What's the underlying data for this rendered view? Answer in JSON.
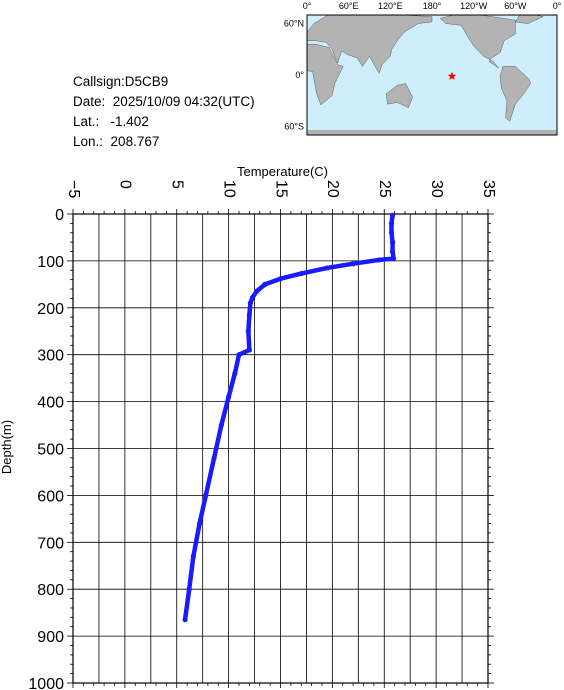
{
  "info": {
    "callsign_label": "Callsign:",
    "callsign": "D5CB9",
    "date_label": "Date:",
    "date": "2025/10/09 04:32(UTC)",
    "lat_label": "Lat.:",
    "lat": "-1.402",
    "lon_label": "Lon.:",
    "lon": "208.767"
  },
  "map": {
    "top_labels": [
      "0°",
      "60°E",
      "120°E",
      "180°",
      "120°W",
      "60°W",
      "0°"
    ],
    "left_labels": [
      "60°N",
      "0°",
      "60°S"
    ],
    "marker_lon": 208.767,
    "marker_lat": -1.402,
    "ocean_color": "#cdeefa",
    "land_color": "#b3b3b3",
    "marker_color": "#ff0000"
  },
  "chart_data": {
    "type": "line",
    "xlabel": "Temperature(C)",
    "ylabel": "Depth(m)",
    "xlim": [
      -5,
      35
    ],
    "ylim": [
      1000,
      0
    ],
    "x_ticks": [
      "-5",
      "0",
      "5",
      "10",
      "15",
      "20",
      "25",
      "30",
      "35"
    ],
    "y_ticks": [
      "0",
      "100",
      "200",
      "300",
      "400",
      "500",
      "600",
      "700",
      "800",
      "900",
      "1000"
    ],
    "grid": true,
    "line_color": "#1a1aff",
    "series": [
      {
        "name": "",
        "points": [
          [
            25.8,
            3
          ],
          [
            25.7,
            20
          ],
          [
            25.7,
            40
          ],
          [
            25.8,
            60
          ],
          [
            25.8,
            80
          ],
          [
            25.9,
            95
          ],
          [
            24.5,
            98
          ],
          [
            22.0,
            106
          ],
          [
            19.5,
            115
          ],
          [
            17.0,
            127
          ],
          [
            15.0,
            138
          ],
          [
            13.5,
            150
          ],
          [
            12.7,
            165
          ],
          [
            12.3,
            178
          ],
          [
            12.1,
            190
          ],
          [
            12.0,
            215
          ],
          [
            11.9,
            250
          ],
          [
            12.0,
            290
          ],
          [
            11.0,
            300
          ],
          [
            10.6,
            340
          ],
          [
            10.0,
            390
          ],
          [
            9.3,
            450
          ],
          [
            8.6,
            520
          ],
          [
            7.8,
            600
          ],
          [
            7.2,
            660
          ],
          [
            6.6,
            730
          ],
          [
            6.2,
            800
          ],
          [
            5.8,
            865
          ]
        ]
      }
    ]
  }
}
